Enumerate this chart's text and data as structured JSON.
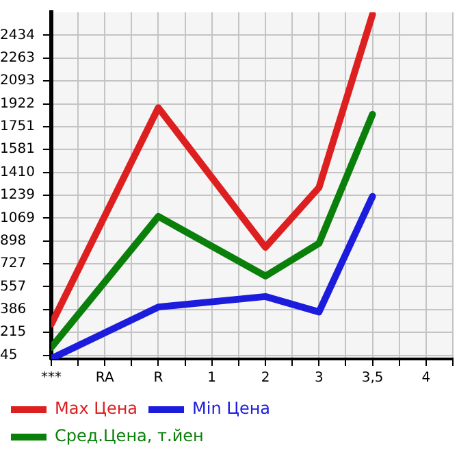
{
  "chart_data": {
    "type": "line",
    "categories": [
      "***",
      "RA",
      "R",
      "1",
      "2",
      "3",
      "3,5",
      "4"
    ],
    "series": [
      {
        "name": "Max Цена",
        "color": "#dd1f1f",
        "values": [
          276,
          null,
          1893,
          null,
          851,
          1297,
          2589,
          null
        ]
      },
      {
        "name": "Min Цена",
        "color": "#1c1cdd",
        "values": [
          20,
          null,
          405,
          null,
          483,
          368,
          1231,
          null
        ]
      },
      {
        "name": "Сред.Цена, т.йен",
        "color": "#0a7f0a",
        "values": [
          103,
          null,
          1081,
          null,
          636,
          880,
          1844,
          null
        ]
      }
    ],
    "ylim": [
      17,
      2605
    ],
    "yticks": [
      45,
      215,
      386,
      557,
      727,
      898,
      1069,
      1239,
      1410,
      1581,
      1751,
      1922,
      2093,
      2263,
      2434
    ],
    "grid": true,
    "legend": "bottom",
    "marker": "none",
    "line_style": "solid"
  }
}
